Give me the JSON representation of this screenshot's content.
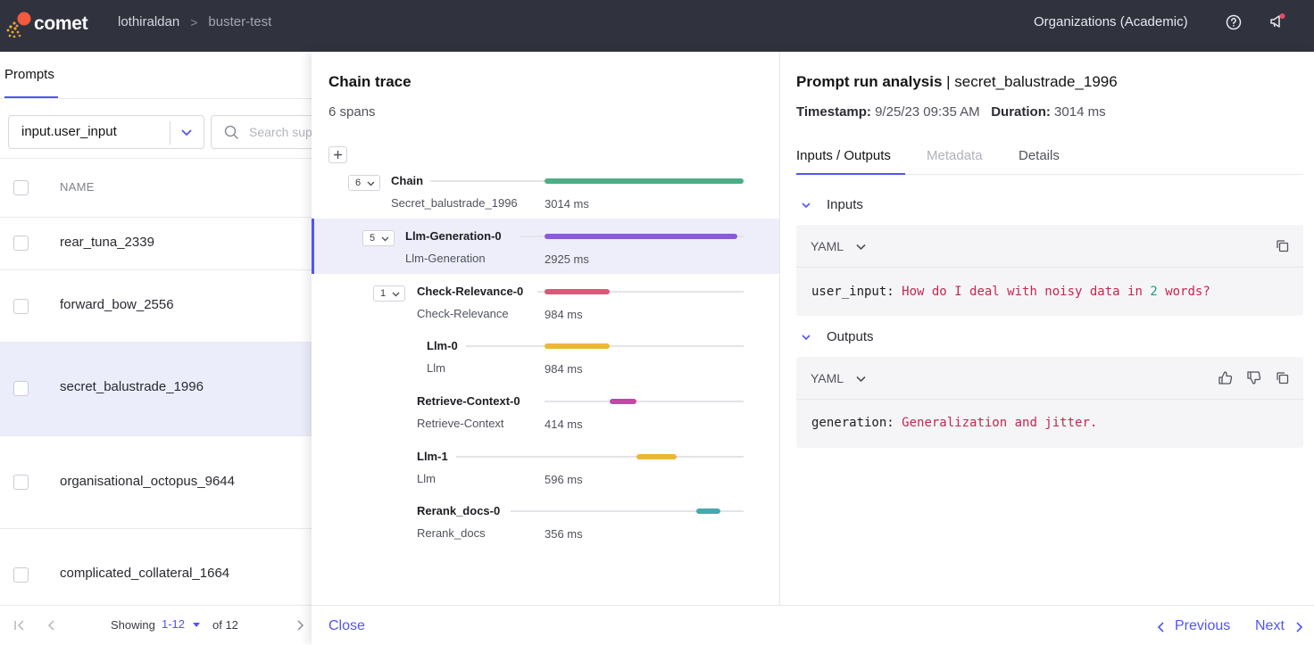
{
  "app": {
    "logo_text": "comet",
    "breadcrumb": [
      "lothiraldan",
      "buster-test"
    ],
    "org": "Organizations (Academic)"
  },
  "left": {
    "tab": "Prompts",
    "select_value": "input.user_input",
    "search_placeholder": "Search sup",
    "column_name": "NAME",
    "rows": [
      {
        "name": "rear_tuna_2339"
      },
      {
        "name": "forward_bow_2556"
      },
      {
        "name": "secret_balustrade_1996"
      },
      {
        "name": "organisational_octopus_9644"
      },
      {
        "name": "complicated_collateral_1664"
      }
    ],
    "pager": {
      "showing": "Showing",
      "range": "1-12",
      "of": "of 12"
    }
  },
  "chain": {
    "title": "Chain trace",
    "subtitle": "6 spans",
    "expand": "+",
    "spans": [
      {
        "name": "Chain",
        "type": "Secret_balustrade_1996",
        "duration": "3014 ms",
        "count": "6",
        "color": "#4cae84",
        "start": 0,
        "end": 3014
      },
      {
        "name": "Llm-Generation-0",
        "type": "Llm-Generation",
        "duration": "2925 ms",
        "count": "5",
        "color": "#8d5bd0",
        "start": 0,
        "end": 2925
      },
      {
        "name": "Check-Relevance-0",
        "type": "Check-Relevance",
        "duration": "984 ms",
        "count": "1",
        "color": "#e05578",
        "start": 0,
        "end": 984
      },
      {
        "name": "Llm-0",
        "type": "Llm",
        "duration": "984 ms",
        "count": "",
        "color": "#eab738",
        "start": 0,
        "end": 984
      },
      {
        "name": "Retrieve-Context-0",
        "type": "Retrieve-Context",
        "duration": "414 ms",
        "count": "",
        "color": "#c348a6",
        "start": 984,
        "end": 1398
      },
      {
        "name": "Llm-1",
        "type": "Llm",
        "duration": "596 ms",
        "count": "",
        "color": "#eab738",
        "start": 1398,
        "end": 1994
      },
      {
        "name": "Rerank_docs-0",
        "type": "Rerank_docs",
        "duration": "356 ms",
        "count": "",
        "color": "#46a8b0",
        "start": 2300,
        "end": 2656
      }
    ]
  },
  "analysis": {
    "title_bold": "Prompt run analysis",
    "title_rest": " | secret_balustrade_1996",
    "timestamp_label": "Timestamp:",
    "timestamp": " 9/25/23 09:35 AM",
    "duration_label": "Duration:",
    "duration": " 3014 ms",
    "tabs": [
      "Inputs / Outputs",
      "Metadata",
      "Details"
    ],
    "inputs_label": "Inputs",
    "outputs_label": "Outputs",
    "format": "YAML",
    "input_key": "user_input:",
    "input_v1": "How do I deal with noisy data in",
    "input_num": "2",
    "input_v2": "words?",
    "output_key": "generation:",
    "output_value": "Generalization and jitter."
  },
  "footer": {
    "close": "Close",
    "previous": "Previous",
    "next": "Next"
  }
}
